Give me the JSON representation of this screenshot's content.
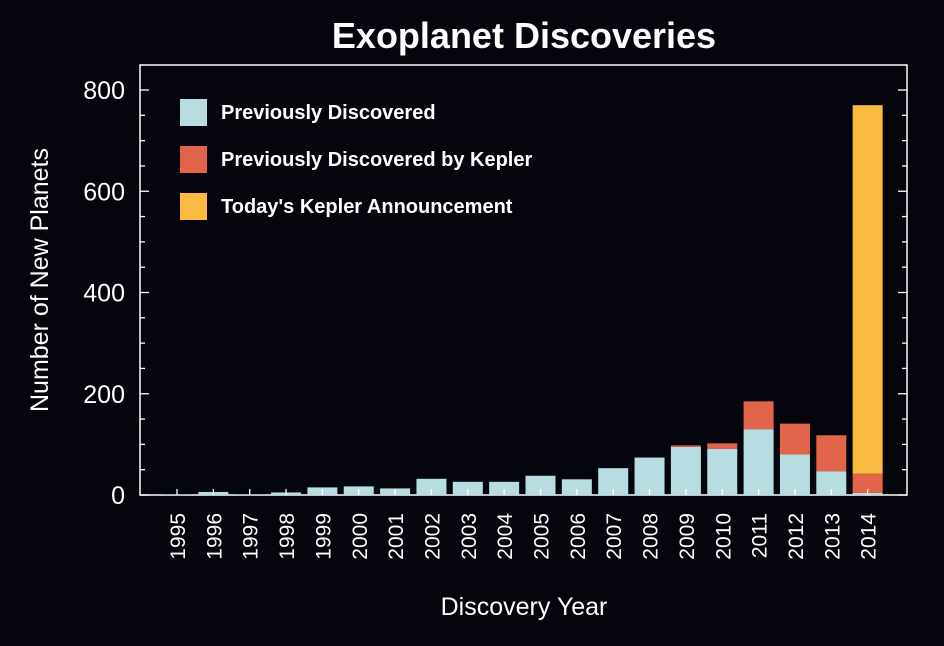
{
  "chart_data": {
    "type": "bar",
    "stacked": true,
    "title": "Exoplanet Discoveries",
    "xlabel": "Discovery Year",
    "ylabel": "Number of New Planets",
    "ylim": [
      0,
      800
    ],
    "yticks": [
      0,
      200,
      400,
      600,
      800
    ],
    "grid": false,
    "legend_position": "top-left",
    "categories": [
      "1995",
      "1996",
      "1997",
      "1998",
      "1999",
      "2000",
      "2001",
      "2002",
      "2003",
      "2004",
      "2005",
      "2006",
      "2007",
      "2008",
      "2009",
      "2010",
      "2011",
      "2012",
      "2013",
      "2014"
    ],
    "series": [
      {
        "name": "Previously Discovered",
        "color": "#b7dde3",
        "values": [
          1,
          6,
          1,
          5,
          15,
          17,
          13,
          32,
          26,
          26,
          38,
          31,
          53,
          74,
          95,
          91,
          130,
          80,
          47,
          4
        ]
      },
      {
        "name": "Previously Discovered by Kepler",
        "color": "#e2644a",
        "values": [
          0,
          0,
          0,
          0,
          0,
          0,
          0,
          0,
          0,
          0,
          0,
          0,
          0,
          0,
          3,
          11,
          55,
          61,
          71,
          38
        ]
      },
      {
        "name": "Today's Kepler Announcement",
        "color": "#fbba40",
        "values": [
          0,
          0,
          0,
          0,
          0,
          0,
          0,
          0,
          0,
          0,
          0,
          0,
          0,
          0,
          0,
          0,
          0,
          0,
          0,
          728
        ]
      }
    ]
  }
}
